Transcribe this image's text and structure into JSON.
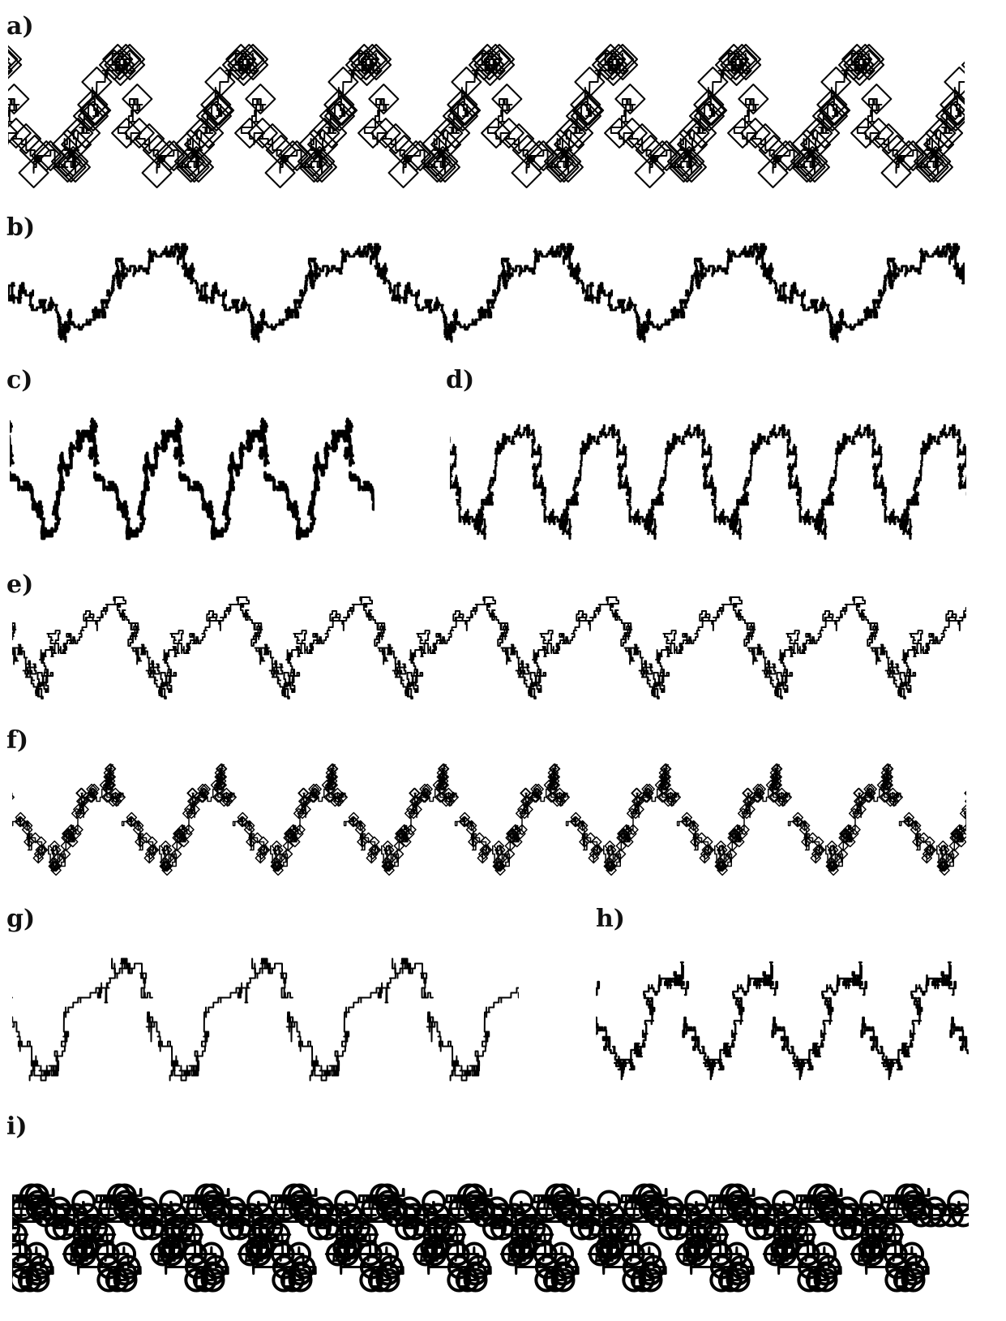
{
  "panels": [
    {
      "label": "a)"
    },
    {
      "label": "b)"
    },
    {
      "label": "c)"
    },
    {
      "label": "d)"
    },
    {
      "label": "e)"
    },
    {
      "label": "f)"
    },
    {
      "label": "g)"
    },
    {
      "label": "h)"
    },
    {
      "label": "i)"
    }
  ]
}
